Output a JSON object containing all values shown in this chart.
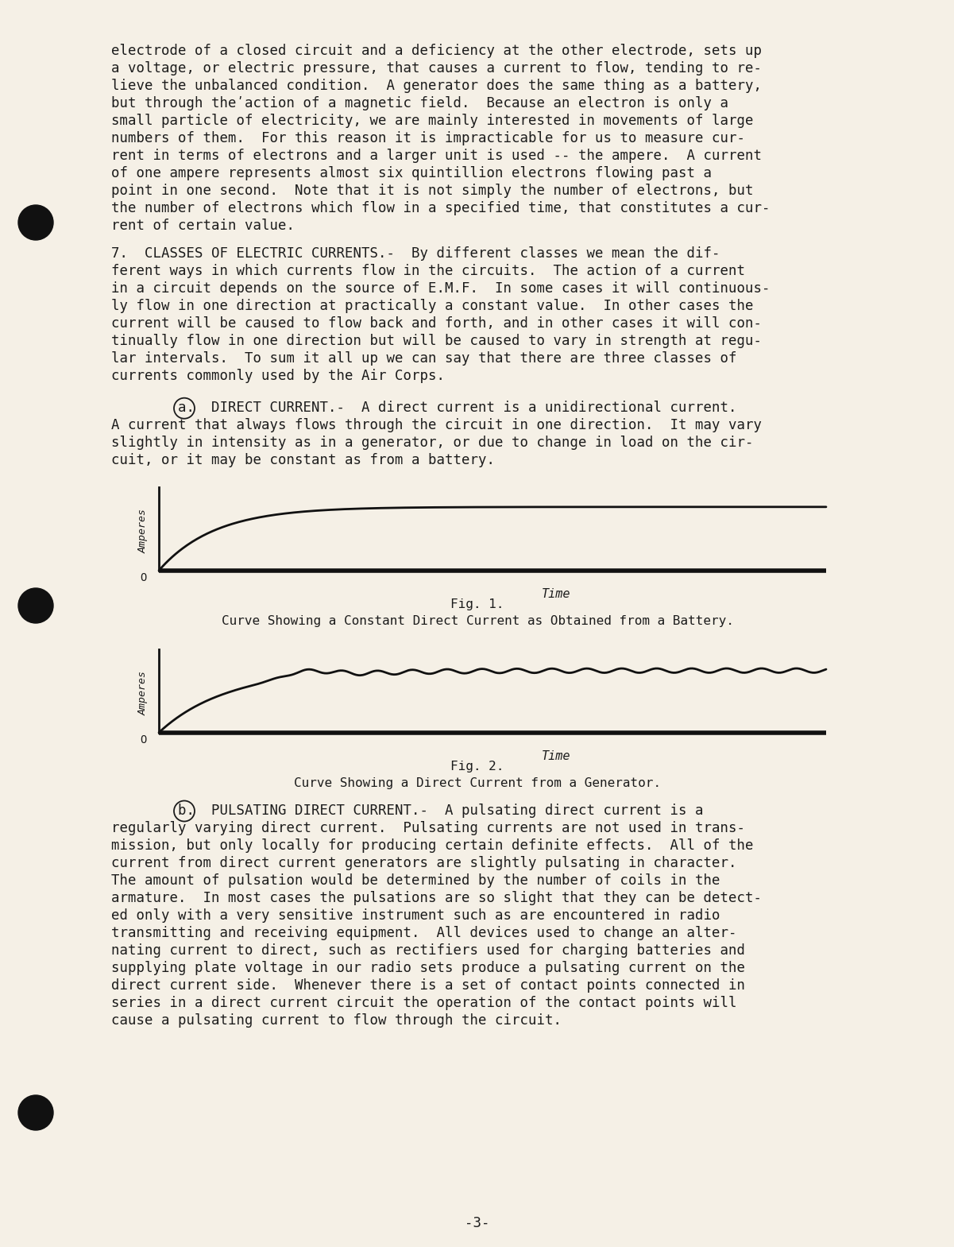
{
  "bg_color": "#f5f0e6",
  "text_color": "#1c1c1c",
  "paragraph1_lines": [
    "electrode of a closed circuit and a deficiency at the other electrode, sets up",
    "a voltage, or electric pressure, that causes a current to flow, tending to re-",
    "lieve the unbalanced condition.  A generator does the same thing as a battery,",
    "but through theʹaction of a magnetic field.  Because an electron is only a",
    "small particle of electricity, we are mainly interested in movements of large",
    "numbers of them.  For this reason it is impracticable for us to measure cur-",
    "rent in terms of electrons and a larger unit is used -- the ampere.  A current",
    "of one ampere represents almost six quintillion electrons flowing past a",
    "point in one second.  Note that it is not simply the number of electrons, but",
    "the number of electrons which flow in a specified time, that constitutes a cur-",
    "rent of certain value."
  ],
  "paragraph2_lines": [
    "ferent ways in which currents flow in the circuits.  The action of a current",
    "in a circuit depends on the source of E.M.F.  In some cases it will continuous-",
    "ly flow in one direction at practically a constant value.  In other cases the",
    "current will be caused to flow back and forth, and in other cases it will con-",
    "tinually flow in one direction but will be caused to vary in strength at regu-",
    "lar intervals.  To sum it all up we can say that there are three classes of",
    "currents commonly used by the Air Corps."
  ],
  "paragraph3_lines": [
    "A current that always flows through the circuit in one direction.  It may vary",
    "slightly in intensity as in a generator, or due to change in load on the cir-",
    "cuit, or it may be constant as from a battery."
  ],
  "paragraph4_lines": [
    "regularly varying direct current.  Pulsating currents are not used in trans-",
    "mission, but only locally for producing certain definite effects.  All of the",
    "current from direct current generators are slightly pulsating in character.",
    "The amount of pulsation would be determined by the number of coils in the",
    "armature.  In most cases the pulsations are so slight that they can be detect-",
    "ed only with a very sensitive instrument such as are encountered in radio",
    "transmitting and receiving equipment.  All devices used to change an alter-",
    "nating current to direct, such as rectifiers used for charging batteries and",
    "supplying plate voltage in our radio sets produce a pulsating current on the",
    "direct current side.  Whenever there is a set of contact points connected in",
    "series in a direct current circuit the operation of the contact points will",
    "cause a pulsating current to flow through the circuit."
  ],
  "fig1_caption1": "Fig. 1.",
  "fig1_caption2": "Curve Showing a Constant Direct Current as Obtained from a Battery.",
  "fig2_caption1": "Fig. 2.",
  "fig2_caption2": "Curve Showing a Direct Current from a Generator.",
  "page_number": "-3-"
}
